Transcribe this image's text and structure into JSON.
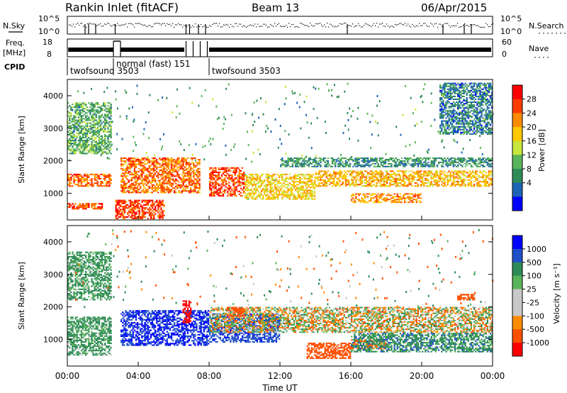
{
  "header": {
    "title": "Rankin Inlet (fitACF)",
    "beam": "Beam 13",
    "date": "06/Apr/2015"
  },
  "top_panels": {
    "nsky_label": "N.Sky",
    "nsearch_label": "N.Search",
    "nsearch_marker": "·······",
    "noise_ticks_left": [
      "10^5",
      "10^0"
    ],
    "noise_ticks_right": [
      "10^5",
      "10^0"
    ],
    "freq_label_1": "Freq.",
    "freq_label_2": "[MHz]",
    "freq_ticks": [
      "18",
      "8"
    ],
    "nave_label": "Nave",
    "nave_marker": "····",
    "nave_ticks": [
      "60",
      "0"
    ],
    "cpid_label": "CPID",
    "cpid_segments": [
      {
        "label": "twofsound 3503",
        "start_hour": 0.0,
        "end_hour": 2.6
      },
      {
        "label": "normal (fast) 151",
        "start_hour": 2.6,
        "end_hour": 8.0
      },
      {
        "label": "twofsound 3503",
        "start_hour": 8.0,
        "end_hour": 24.0
      }
    ]
  },
  "power_colorbar": {
    "label": "Power [dB]",
    "ticks": [
      "28",
      "24",
      "20",
      "16",
      "12",
      "8",
      "4"
    ],
    "colors": [
      "#ff0000",
      "#ff3c00",
      "#ff8c00",
      "#ffc800",
      "#c8e63c",
      "#5ab45a",
      "#2e8b57",
      "#1e64b4",
      "#0000ff"
    ]
  },
  "velocity_colorbar": {
    "label": "Velocity [m s⁻¹]",
    "ticks": [
      "1000",
      "500",
      "100",
      "25",
      "-25",
      "-100",
      "-500",
      "-1000"
    ],
    "colors": [
      "#0000ff",
      "#2050c8",
      "#2e8b57",
      "#5ab45a",
      "#c8c8c8",
      "#c8c8c8",
      "#ff8c00",
      "#ff5000",
      "#ff0000"
    ]
  },
  "axes": {
    "ylabel": "Slant Range [km]",
    "yticks": [
      "4000",
      "3000",
      "2000",
      "1000"
    ],
    "xticks": [
      "00:00",
      "04:00",
      "08:00",
      "12:00",
      "16:00",
      "20:00",
      "00:00"
    ],
    "xlabel": "Time UT"
  },
  "chart_data": [
    {
      "type": "heatmap",
      "title": "Power [dB]",
      "xlabel": "",
      "ylabel": "Slant Range [km]",
      "xlim_hours": [
        0,
        24
      ],
      "ylim_km": [
        180,
        4500
      ],
      "colorscale_db": [
        0,
        30
      ],
      "bands": [
        {
          "hours": [
            0,
            2
          ],
          "range_km": [
            500,
            700
          ],
          "db": 26
        },
        {
          "hours": [
            0,
            2.5
          ],
          "range_km": [
            1200,
            1600
          ],
          "db": 24
        },
        {
          "hours": [
            0,
            2.5
          ],
          "range_km": [
            2200,
            3800
          ],
          "db": 10
        },
        {
          "hours": [
            2.7,
            5.5
          ],
          "range_km": [
            200,
            800
          ],
          "db": 27
        },
        {
          "hours": [
            3,
            7.5
          ],
          "range_km": [
            1000,
            2100
          ],
          "db": 24
        },
        {
          "hours": [
            8,
            10
          ],
          "range_km": [
            900,
            1800
          ],
          "db": 26
        },
        {
          "hours": [
            10,
            14
          ],
          "range_km": [
            800,
            1600
          ],
          "db": 18
        },
        {
          "hours": [
            12,
            24
          ],
          "range_km": [
            1800,
            2100
          ],
          "db": 8
        },
        {
          "hours": [
            14,
            24
          ],
          "range_km": [
            1200,
            1700
          ],
          "db": 20
        },
        {
          "hours": [
            16,
            20
          ],
          "range_km": [
            700,
            1000
          ],
          "db": 22
        },
        {
          "hours": [
            21,
            24
          ],
          "range_km": [
            2800,
            4400
          ],
          "db": 6
        }
      ]
    },
    {
      "type": "heatmap",
      "title": "Velocity [m s⁻¹]",
      "xlabel": "Time UT",
      "ylabel": "Slant Range [km]",
      "xlim_hours": [
        0,
        24
      ],
      "ylim_km": [
        180,
        4500
      ],
      "colorscale_ms": [
        -1000,
        1000
      ],
      "bands": [
        {
          "hours": [
            0,
            2.5
          ],
          "range_km": [
            500,
            1700
          ],
          "v": 150
        },
        {
          "hours": [
            0,
            2.5
          ],
          "range_km": [
            2200,
            3700
          ],
          "v": 150
        },
        {
          "hours": [
            3,
            8
          ],
          "range_km": [
            800,
            1900
          ],
          "v": 700
        },
        {
          "hours": [
            6.5,
            7
          ],
          "range_km": [
            1500,
            2200
          ],
          "v": -900
        },
        {
          "hours": [
            8,
            12
          ],
          "range_km": [
            900,
            1800
          ],
          "v": 600
        },
        {
          "hours": [
            8,
            24
          ],
          "range_km": [
            1200,
            2000
          ],
          "v": 0
        },
        {
          "hours": [
            9,
            10
          ],
          "range_km": [
            1700,
            2000
          ],
          "v": -300
        },
        {
          "hours": [
            13.5,
            16
          ],
          "range_km": [
            400,
            900
          ],
          "v": -300
        },
        {
          "hours": [
            16,
            18
          ],
          "range_km": [
            700,
            1000
          ],
          "v": -200
        },
        {
          "hours": [
            16,
            24
          ],
          "range_km": [
            600,
            1200
          ],
          "v": 200
        },
        {
          "hours": [
            22,
            23
          ],
          "range_km": [
            2200,
            2400
          ],
          "v": -300
        }
      ]
    }
  ]
}
